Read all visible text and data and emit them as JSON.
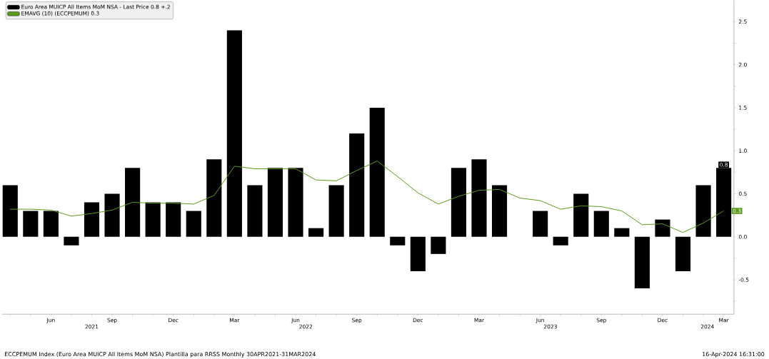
{
  "chart_data": {
    "type": "bar",
    "categories": [
      null,
      null,
      "Jun",
      null,
      null,
      "Sep",
      null,
      null,
      "Dec",
      null,
      null,
      "Mar",
      null,
      null,
      "Jun",
      null,
      null,
      "Sep",
      null,
      null,
      "Dec",
      null,
      null,
      "Mar",
      null,
      null,
      "Jun",
      null,
      null,
      "Sep",
      null,
      null,
      "Dec",
      null,
      null,
      "Mar"
    ],
    "series": [
      {
        "name": "Euro Area MUICP All Items MoM NSA - Last Price  0.8  +.2",
        "color": "#000000",
        "values": [
          0.6,
          0.3,
          0.3,
          -0.1,
          0.4,
          0.5,
          0.8,
          0.4,
          0.4,
          0.3,
          0.9,
          2.4,
          0.6,
          0.8,
          0.8,
          0.1,
          0.6,
          1.2,
          1.5,
          -0.1,
          -0.4,
          -0.2,
          0.8,
          0.9,
          0.6,
          0.0,
          0.3,
          -0.1,
          0.5,
          0.3,
          0.1,
          -0.6,
          0.2,
          -0.4,
          0.6,
          0.8
        ],
        "value_labels": [
          null,
          null,
          null,
          null,
          null,
          null,
          null,
          null,
          null,
          null,
          null,
          null,
          null,
          null,
          null,
          null,
          null,
          null,
          null,
          null,
          null,
          null,
          null,
          null,
          null,
          null,
          null,
          null,
          null,
          null,
          null,
          null,
          null,
          null,
          null,
          "0.8"
        ]
      },
      {
        "type": "line",
        "name": "EMAVG (10) (ECCPEMUM)  0.3",
        "color": "#5b9a1e",
        "values": [
          0.32,
          0.32,
          0.31,
          0.24,
          0.27,
          0.31,
          0.4,
          0.39,
          0.39,
          0.38,
          0.48,
          0.82,
          0.79,
          0.79,
          0.79,
          0.66,
          0.65,
          0.77,
          0.88,
          0.7,
          0.51,
          0.38,
          0.47,
          0.54,
          0.55,
          0.45,
          0.42,
          0.32,
          0.36,
          0.35,
          0.3,
          0.14,
          0.15,
          0.05,
          0.16,
          0.3
        ],
        "value_labels": [
          null,
          null,
          null,
          null,
          null,
          null,
          null,
          null,
          null,
          null,
          null,
          null,
          null,
          null,
          null,
          null,
          null,
          null,
          null,
          null,
          null,
          null,
          null,
          null,
          null,
          null,
          null,
          null,
          null,
          null,
          null,
          null,
          null,
          null,
          null,
          "0.3"
        ]
      }
    ],
    "ylim": [
      -0.9,
      2.75
    ],
    "yticks": [
      {
        "value": -0.75,
        "label": null
      },
      -0.5,
      {
        "value": -0.25,
        "label": null
      },
      {
        "value": 0,
        "label": "0.0"
      },
      {
        "value": 0.25,
        "label": null
      },
      0.5,
      {
        "value": 0.75,
        "label": null
      },
      {
        "value": 1,
        "label": "1.0"
      },
      {
        "value": 1.25,
        "label": null
      },
      1.5,
      {
        "value": 1.75,
        "label": null
      },
      {
        "value": 2,
        "label": "2.0"
      },
      {
        "value": 2.25,
        "label": null
      },
      2.5
    ],
    "legend": "top left",
    "grid": false,
    "marker": "none",
    "line_style": "solid",
    "annotations": [
      "2021",
      "2022",
      "2023",
      "2024",
      "ECCPEMUM Index (Euro Area MUICP All Items MoM NSA) Plantilla para RRSS  Monthly 30APR2021-31MAR2024",
      "16-Apr-2024 16:31:00"
    ]
  }
}
